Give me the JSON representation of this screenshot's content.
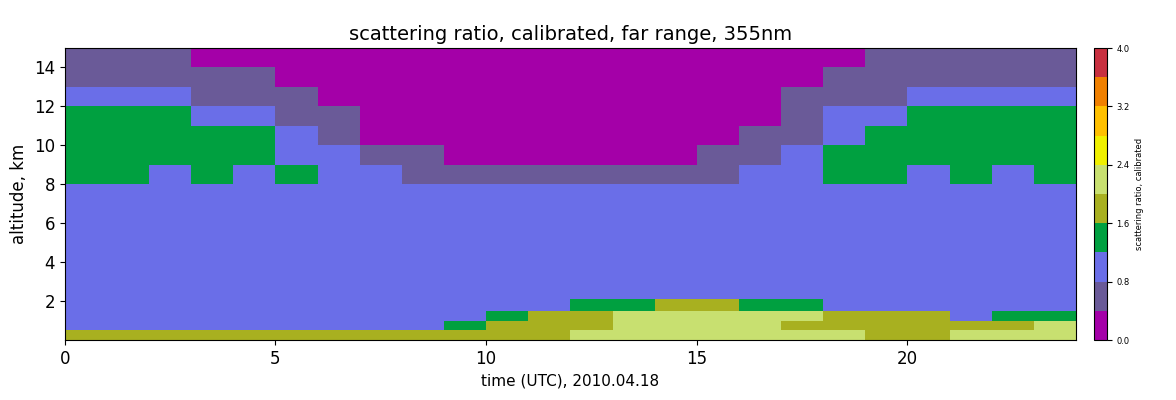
{
  "chart_data": {
    "type": "heatmap",
    "title": "scattering ratio, calibrated, far range, 355nm",
    "x_label": "time (UTC), 2010.04.18",
    "y_label": "altitude, km",
    "x": [
      0.5,
      1.5,
      2.5,
      3.5,
      4.5,
      5.5,
      6.5,
      7.5,
      8.5,
      9.5,
      10.5,
      11.5,
      12.5,
      13.5,
      14.5,
      15.5,
      16.5,
      17.5,
      18.5,
      19.5,
      20.5,
      21.5,
      22.5,
      23.5
    ],
    "y": [
      0.25,
      0.75,
      1.25,
      1.75,
      2.5,
      3.5,
      4.5,
      5.5,
      6.5,
      7.5,
      8.5,
      9.5,
      10.5,
      11.5,
      12.5,
      13.5,
      14.5
    ],
    "cells": [
      [
        1.7,
        1.6,
        1.7,
        1.7,
        1.6,
        1.7,
        1.6,
        1.7,
        1.7,
        1.8,
        1.8,
        1.9,
        2.0,
        2.0,
        2.1,
        2.1,
        2.0,
        2.0,
        2.0,
        1.9,
        1.9,
        2.1,
        2.2,
        2.2
      ],
      [
        1.0,
        1.1,
        1.0,
        1.0,
        1.1,
        1.0,
        1.0,
        1.1,
        1.2,
        1.4,
        1.7,
        1.8,
        1.9,
        2.0,
        2.1,
        2.1,
        2.0,
        1.9,
        1.8,
        1.7,
        1.6,
        1.8,
        1.9,
        2.0
      ],
      [
        0.9,
        0.9,
        0.9,
        0.9,
        0.9,
        0.9,
        0.9,
        0.9,
        1.0,
        1.1,
        1.4,
        1.7,
        1.9,
        2.1,
        2.2,
        2.2,
        2.1,
        2.0,
        1.9,
        1.8,
        1.6,
        1.2,
        1.4,
        1.5
      ],
      [
        0.9,
        0.9,
        0.9,
        0.9,
        0.9,
        0.9,
        0.9,
        0.9,
        0.9,
        0.9,
        0.9,
        0.9,
        1.3,
        1.4,
        1.6,
        1.6,
        1.4,
        1.3,
        1.0,
        0.9,
        0.9,
        0.9,
        0.9,
        0.9
      ],
      [
        0.95,
        0.95,
        0.95,
        0.95,
        0.95,
        0.95,
        0.95,
        0.95,
        0.95,
        0.95,
        0.95,
        0.95,
        0.95,
        0.95,
        0.95,
        0.95,
        0.95,
        0.95,
        0.95,
        0.95,
        0.95,
        0.95,
        0.95,
        0.95
      ],
      [
        0.95,
        0.95,
        0.95,
        0.95,
        0.95,
        0.95,
        0.95,
        0.95,
        0.95,
        0.95,
        0.95,
        0.95,
        0.95,
        0.95,
        0.95,
        0.95,
        0.95,
        0.95,
        0.95,
        0.95,
        0.95,
        0.95,
        0.95,
        0.95
      ],
      [
        1.0,
        1.0,
        1.0,
        1.0,
        1.0,
        1.0,
        1.0,
        1.0,
        1.0,
        0.95,
        0.95,
        0.95,
        0.95,
        0.95,
        0.95,
        0.95,
        1.0,
        1.0,
        1.0,
        1.0,
        1.0,
        1.0,
        1.0,
        1.0
      ],
      [
        1.0,
        1.1,
        1.0,
        1.0,
        1.1,
        1.0,
        1.0,
        1.0,
        1.0,
        1.0,
        0.95,
        0.95,
        0.95,
        0.95,
        0.95,
        1.0,
        1.0,
        1.0,
        1.0,
        1.1,
        1.0,
        1.0,
        1.1,
        1.0
      ],
      [
        1.1,
        1.0,
        1.1,
        1.0,
        1.0,
        1.1,
        1.0,
        1.0,
        1.0,
        1.0,
        0.9,
        0.9,
        0.9,
        0.9,
        0.9,
        1.0,
        1.0,
        1.0,
        1.0,
        1.1,
        1.1,
        1.0,
        1.1,
        1.0
      ],
      [
        1.2,
        1.1,
        1.2,
        1.1,
        1.2,
        1.2,
        1.1,
        1.0,
        1.0,
        0.9,
        0.9,
        0.9,
        0.9,
        0.9,
        0.9,
        0.9,
        1.0,
        1.1,
        1.2,
        1.2,
        1.1,
        1.2,
        1.1,
        1.2
      ],
      [
        1.3,
        1.3,
        1.2,
        1.3,
        1.2,
        1.3,
        1.2,
        1.0,
        0.7,
        0.6,
        0.6,
        0.6,
        0.6,
        0.6,
        0.6,
        0.7,
        0.8,
        1.1,
        1.3,
        1.3,
        1.2,
        1.3,
        1.2,
        1.3
      ],
      [
        1.4,
        1.3,
        1.4,
        1.3,
        1.4,
        1.2,
        1.0,
        0.6,
        0.4,
        0.3,
        0.3,
        0.3,
        0.3,
        0.3,
        0.3,
        0.4,
        0.6,
        0.9,
        1.3,
        1.4,
        1.3,
        1.4,
        1.3,
        1.4
      ],
      [
        1.5,
        1.4,
        1.5,
        1.4,
        1.3,
        1.0,
        0.6,
        0.3,
        0.3,
        0.2,
        0.2,
        0.2,
        0.2,
        0.2,
        0.2,
        0.3,
        0.4,
        0.7,
        1.1,
        1.4,
        1.5,
        1.4,
        1.5,
        1.4
      ],
      [
        1.3,
        1.4,
        1.3,
        1.2,
        1.0,
        0.6,
        0.4,
        0.3,
        0.2,
        0.2,
        0.2,
        0.2,
        0.2,
        0.2,
        0.2,
        0.3,
        0.3,
        0.5,
        0.9,
        1.2,
        1.3,
        1.4,
        1.3,
        1.3
      ],
      [
        0.9,
        0.9,
        0.8,
        0.7,
        0.5,
        0.4,
        0.3,
        0.3,
        0.2,
        0.2,
        0.2,
        0.2,
        0.2,
        0.2,
        0.2,
        0.2,
        0.3,
        0.4,
        0.5,
        0.7,
        0.8,
        0.9,
        0.9,
        0.9
      ],
      [
        0.6,
        0.5,
        0.5,
        0.4,
        0.4,
        0.3,
        0.3,
        0.2,
        0.2,
        0.2,
        0.2,
        0.2,
        0.2,
        0.2,
        0.2,
        0.2,
        0.3,
        0.3,
        0.4,
        0.5,
        0.5,
        0.6,
        0.6,
        0.6
      ],
      [
        0.5,
        0.4,
        0.4,
        0.3,
        0.3,
        0.3,
        0.2,
        0.2,
        0.2,
        0.2,
        0.2,
        0.2,
        0.2,
        0.2,
        0.2,
        0.2,
        0.2,
        0.3,
        0.3,
        0.4,
        0.4,
        0.5,
        0.5,
        0.5
      ]
    ],
    "xlim": [
      0,
      24
    ],
    "xticks": [
      0,
      5,
      10,
      15,
      20
    ],
    "ylim": [
      0,
      15
    ],
    "yticks": [
      2,
      4,
      6,
      8,
      10,
      12,
      14
    ],
    "colorbar_label": "scattering ratio, calibrated",
    "colorbar_range": [
      0,
      4
    ],
    "colorbar_ticks": [
      {
        "value": 0,
        "label": "0.0"
      },
      {
        "value": 0.8,
        "label": "0.8"
      },
      {
        "value": 1.6,
        "label": "1.6"
      },
      {
        "value": 2.4,
        "label": "2.4"
      },
      {
        "value": 3.2,
        "label": "3.2"
      },
      {
        "value": 4,
        "label": "4.0"
      }
    ]
  }
}
